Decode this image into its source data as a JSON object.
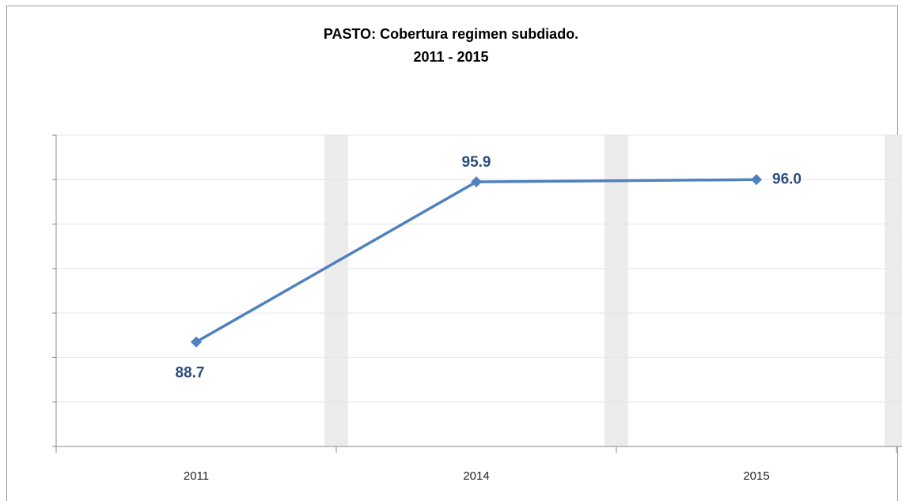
{
  "chart_data": {
    "type": "line",
    "title": "PASTO: Cobertura regimen subdiado.",
    "subtitle": "2011 - 2015",
    "categories": [
      "2011",
      "2014",
      "2015"
    ],
    "values": [
      88.7,
      95.9,
      96.0
    ],
    "value_labels": [
      "88.7",
      "95.9",
      "96.0"
    ],
    "color": "#4f81bd",
    "ylim": [
      84,
      98
    ],
    "yticks": [
      84,
      86,
      88,
      90,
      92,
      94,
      96,
      98
    ],
    "grid": true
  }
}
